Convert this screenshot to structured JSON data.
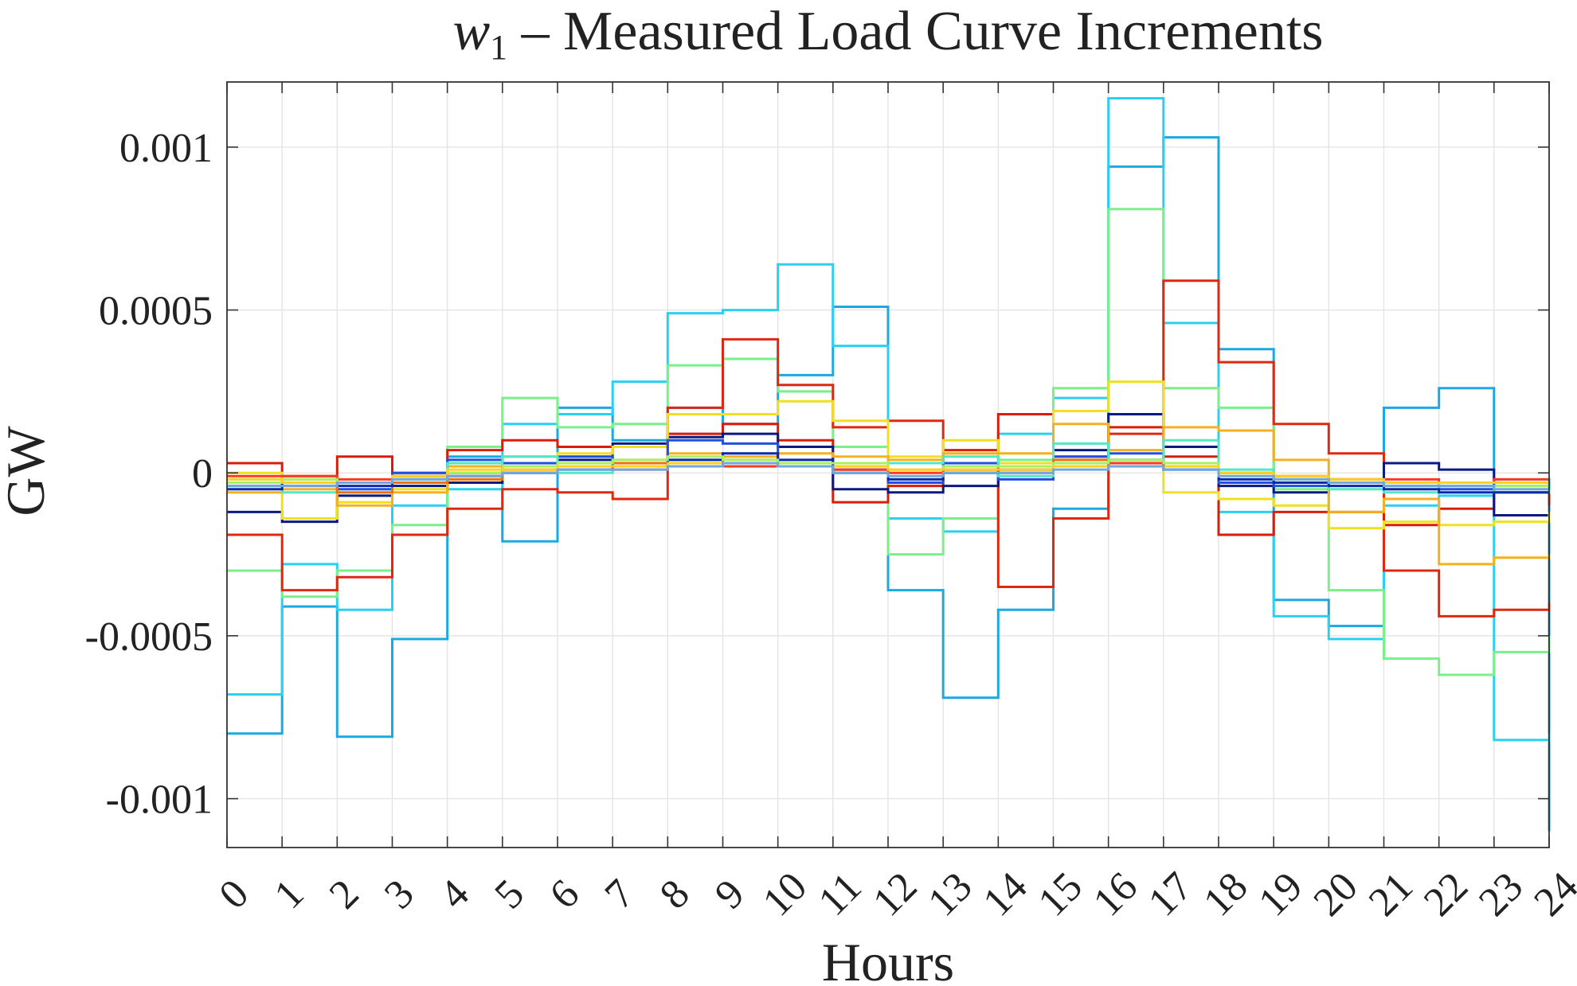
{
  "chart_data": {
    "type": "line",
    "step": "post",
    "title_main": "w",
    "title_sub": "1",
    "title_rest": " – Measured Load Curve Increments",
    "xlabel": "Hours",
    "ylabel": "GW",
    "xlim": [
      0,
      24
    ],
    "ylim": [
      -0.00115,
      0.0012
    ],
    "grid": true,
    "x": [
      0,
      1,
      2,
      3,
      4,
      5,
      6,
      7,
      8,
      9,
      10,
      11,
      12,
      13,
      14,
      15,
      16,
      17,
      18,
      19,
      20,
      21,
      22,
      23,
      24
    ],
    "x_tick_labels": [
      "0",
      "1",
      "2",
      "3",
      "4",
      "5",
      "6",
      "7",
      "8",
      "9",
      "10",
      "11",
      "12",
      "13",
      "14",
      "15",
      "16",
      "17",
      "18",
      "19",
      "20",
      "21",
      "22",
      "23",
      "24"
    ],
    "y_ticks": [
      0.001,
      0.0005,
      0,
      -0.0005,
      -0.001
    ],
    "y_tick_labels": [
      "0.001",
      "0.0005",
      "0",
      "-0.0005",
      "-0.001"
    ],
    "series": [
      {
        "name": "s1",
        "color": "#1ca8e0",
        "values": [
          -0.0008,
          -0.00041,
          -0.00081,
          -0.00051,
          5e-05,
          -0.00021,
          0.0002,
          0.0001,
          0.0002,
          0.00015,
          0.0003,
          0.00051,
          -0.00036,
          -0.00069,
          -0.00042,
          -0.00011,
          0.00094,
          0.00103,
          0.00038,
          -0.00039,
          -0.00047,
          0.0002,
          0.00026,
          -2e-05,
          -0.0011
        ]
      },
      {
        "name": "s2",
        "color": "#2ad0f0",
        "values": [
          -0.00068,
          -0.00028,
          -0.00042,
          -0.0001,
          -5e-05,
          0.00015,
          0.00018,
          0.00028,
          0.00049,
          0.0005,
          0.00064,
          0.00039,
          -0.00014,
          -0.00018,
          0.00012,
          0.00023,
          0.00115,
          0.00046,
          -0.00012,
          -0.00044,
          -0.00051,
          -0.0001,
          -7e-05,
          -0.00082,
          -0.0008
        ]
      },
      {
        "name": "s3",
        "color": "#7af08a",
        "values": [
          -0.0003,
          -0.00038,
          -0.0003,
          -0.00016,
          8e-05,
          0.00023,
          0.00014,
          0.00015,
          0.00033,
          0.00035,
          0.00025,
          8e-05,
          -0.00025,
          -0.00014,
          4e-05,
          0.00026,
          0.00081,
          0.00026,
          0.0002,
          -5e-05,
          -0.00036,
          -0.00057,
          -0.00062,
          -0.00055,
          -0.0005
        ]
      },
      {
        "name": "s4",
        "color": "#e02810",
        "values": [
          -0.00019,
          -0.00036,
          -0.00032,
          -0.00019,
          -0.00011,
          -5e-05,
          -6e-05,
          -8e-05,
          0.0002,
          0.00041,
          0.00027,
          0.00014,
          0.00016,
          1e-05,
          -0.00035,
          -0.00014,
          0.00012,
          0.00059,
          0.00034,
          0.00015,
          6e-05,
          -0.0003,
          -0.00044,
          -0.00042,
          -0.0004
        ]
      },
      {
        "name": "s5",
        "color": "#d81e0a",
        "values": [
          3e-05,
          -1e-05,
          5e-05,
          0.0,
          7e-05,
          0.0001,
          8e-05,
          8e-05,
          0.00012,
          0.00015,
          0.0001,
          -9e-05,
          -4e-05,
          7e-05,
          0.00018,
          5e-05,
          0.00014,
          5e-05,
          -0.00019,
          -0.00012,
          -0.00012,
          -0.00016,
          -0.00011,
          -6e-05,
          -0.0001
        ]
      },
      {
        "name": "s6",
        "color": "#0a1a80",
        "values": [
          -0.00012,
          -0.00015,
          -7e-05,
          -4e-05,
          -3e-05,
          0.0,
          4e-05,
          9e-05,
          0.00011,
          0.00012,
          8e-05,
          -5e-05,
          -6e-05,
          -4e-05,
          2e-05,
          7e-05,
          0.00018,
          8e-05,
          -4e-05,
          -6e-05,
          -3e-05,
          3e-05,
          1e-05,
          -0.00013,
          -0.00012
        ]
      },
      {
        "name": "s7",
        "color": "#f0e020",
        "values": [
          0.0,
          -0.00014,
          -9e-05,
          -5e-05,
          -2e-05,
          2e-05,
          6e-05,
          8e-05,
          0.00018,
          0.00018,
          0.00022,
          0.00016,
          5e-05,
          0.0001,
          3e-05,
          0.00019,
          0.00028,
          -6e-05,
          -8e-05,
          -0.0001,
          -0.00017,
          -0.00015,
          -0.00016,
          -0.00015,
          -0.00012
        ]
      },
      {
        "name": "s8",
        "color": "#f5b020",
        "values": [
          -6e-05,
          -5e-05,
          -0.0001,
          -6e-05,
          2e-05,
          5e-05,
          5e-05,
          4e-05,
          6e-05,
          5e-05,
          6e-05,
          5e-05,
          4e-05,
          6e-05,
          6e-05,
          0.00015,
          7e-05,
          0.00014,
          0.00013,
          4e-05,
          -0.00012,
          -8e-05,
          -0.00028,
          -0.00026,
          -0.00025
        ]
      },
      {
        "name": "s9",
        "color": "#2050e0",
        "values": [
          -3e-05,
          -4e-05,
          -5e-05,
          0.0,
          4e-05,
          3e-05,
          5e-05,
          2e-05,
          0.0001,
          9e-05,
          2e-05,
          0.0,
          -3e-05,
          3e-05,
          -2e-05,
          5e-05,
          6e-05,
          2e-05,
          -3e-05,
          -4e-05,
          -2e-05,
          -3e-05,
          -5e-05,
          -3e-05,
          -3e-05
        ]
      },
      {
        "name": "s10",
        "color": "#50e8c8",
        "values": [
          -2e-05,
          -6e-05,
          -3e-05,
          -1e-05,
          3e-05,
          5e-05,
          0.0,
          2e-05,
          3e-05,
          3e-05,
          3e-05,
          1e-05,
          3e-05,
          5e-05,
          -1e-05,
          9e-05,
          3e-05,
          0.0001,
          1e-05,
          -2e-05,
          -5e-05,
          -6e-05,
          -4e-05,
          -6e-05,
          -5e-05
        ]
      },
      {
        "name": "s11",
        "color": "#f07010",
        "values": [
          -4e-05,
          -2e-05,
          -6e-05,
          -3e-05,
          -2e-05,
          1e-05,
          3e-05,
          3e-05,
          2e-05,
          4e-05,
          3e-05,
          2e-05,
          1e-05,
          2e-05,
          1e-05,
          4e-05,
          2e-05,
          2e-05,
          0.0,
          -2e-05,
          -3e-05,
          -4e-05,
          -4e-05,
          -4e-05,
          -4e-05
        ]
      },
      {
        "name": "s12",
        "color": "#0a2aa8",
        "values": [
          -5e-05,
          -3e-05,
          -4e-05,
          -2e-05,
          -1e-05,
          2e-05,
          1e-05,
          2e-05,
          4e-05,
          6e-05,
          4e-05,
          1e-05,
          -2e-05,
          0.0,
          1e-05,
          3e-05,
          4e-05,
          1e-05,
          -2e-05,
          -3e-05,
          -4e-05,
          -5e-05,
          -6e-05,
          -6e-05,
          -6e-05
        ]
      },
      {
        "name": "s13",
        "color": "#ff3a20",
        "values": [
          -1e-05,
          -1e-05,
          -2e-05,
          -1e-05,
          0.0,
          1e-05,
          2e-05,
          1e-05,
          2e-05,
          2e-05,
          2e-05,
          1e-05,
          0.0,
          1e-05,
          0.0,
          2e-05,
          3e-05,
          2e-05,
          0.0,
          -1e-05,
          -2e-05,
          -2e-05,
          -3e-05,
          -2e-05,
          -2e-05
        ]
      },
      {
        "name": "s14",
        "color": "#a8f060",
        "values": [
          -3e-05,
          -2e-05,
          -3e-05,
          -2e-05,
          0.0,
          2e-05,
          3e-05,
          4e-05,
          5e-05,
          4e-05,
          3e-05,
          3e-05,
          1e-05,
          2e-05,
          2e-05,
          3e-05,
          4e-05,
          3e-05,
          0.0,
          -2e-05,
          -3e-05,
          -3e-05,
          -4e-05,
          -4e-05,
          -4e-05
        ]
      },
      {
        "name": "s15",
        "color": "#ffd020",
        "values": [
          -2e-05,
          -3e-05,
          -3e-05,
          -1e-05,
          1e-05,
          1e-05,
          2e-05,
          2e-05,
          3e-05,
          3e-05,
          2e-05,
          2e-05,
          1e-05,
          1e-05,
          1e-05,
          2e-05,
          2e-05,
          2e-05,
          0.0,
          -1e-05,
          -2e-05,
          -3e-05,
          -3e-05,
          -3e-05,
          -3e-05
        ]
      },
      {
        "name": "s16",
        "color": "#6fa8dc",
        "values": [
          -4e-05,
          -4e-05,
          -3e-05,
          -2e-05,
          -1e-05,
          0.0,
          1e-05,
          1e-05,
          2e-05,
          3e-05,
          2e-05,
          0.0,
          -1e-05,
          0.0,
          0.0,
          1e-05,
          2e-05,
          1e-05,
          -1e-05,
          -2e-05,
          -3e-05,
          -4e-05,
          -4e-05,
          -5e-05,
          -5e-05
        ]
      }
    ]
  }
}
